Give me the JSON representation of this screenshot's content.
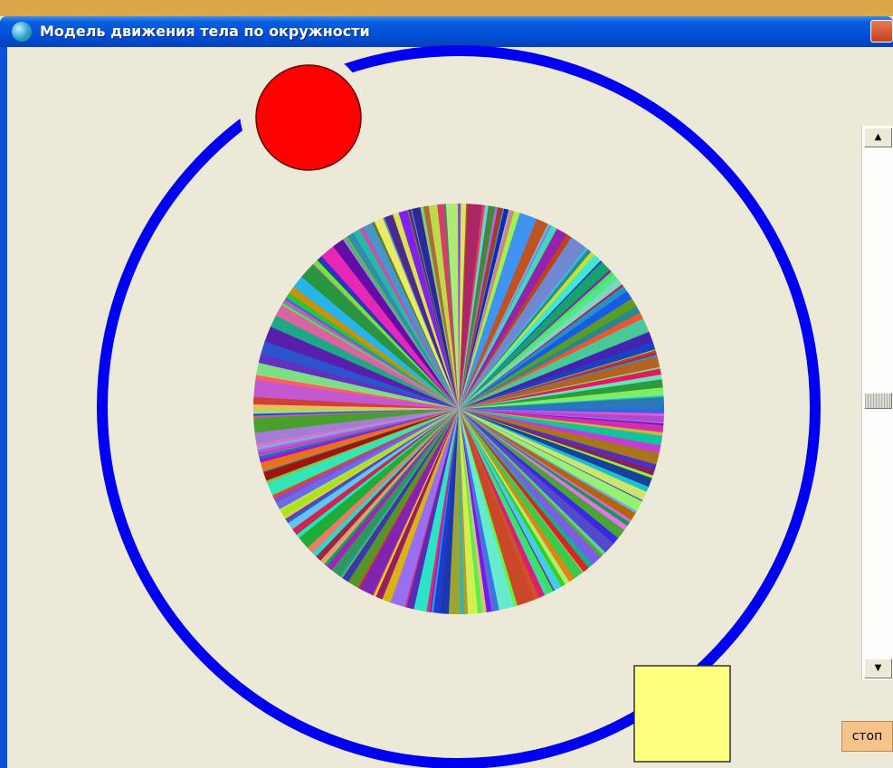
{
  "window": {
    "title": "Модель движения тела по окружности",
    "stop_button": "стоп"
  }
}
